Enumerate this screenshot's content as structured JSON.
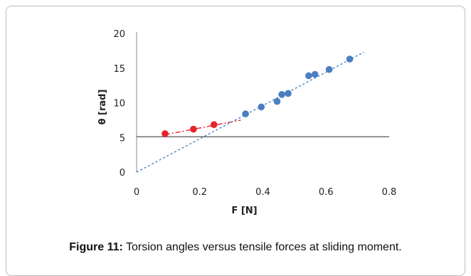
{
  "caption": {
    "label": "Figure 11:",
    "text": " Torsion angles versus tensile forces at sliding moment."
  },
  "chart_data": {
    "type": "scatter",
    "xlabel": "F [N]",
    "ylabel": "θ [rad]",
    "xlim": [
      0,
      0.8
    ],
    "ylim": [
      0,
      20
    ],
    "xticks": [
      "0",
      "0.2",
      "0.4",
      "0.6",
      "0.8"
    ],
    "yticks": [
      "0",
      "5",
      "10",
      "15",
      "20"
    ],
    "grid": false,
    "legend": "none",
    "reference_line": {
      "y": 5.1,
      "color": "#555555"
    },
    "series": [
      {
        "color": "#e8242b",
        "x": [
          0.09,
          0.18,
          0.245
        ],
        "y": [
          5.55,
          6.2,
          6.85
        ],
        "trend_line": {
          "x": [
            0.09,
            0.33
          ],
          "y": [
            5.4,
            7.5
          ],
          "style": "dash-dot",
          "color": "#e8242b"
        }
      },
      {
        "color": "#4a7fc1",
        "x": [
          0.345,
          0.395,
          0.445,
          0.46,
          0.48,
          0.545,
          0.565,
          0.61,
          0.675
        ],
        "y": [
          8.4,
          9.4,
          10.2,
          11.2,
          11.35,
          13.9,
          14.1,
          14.8,
          16.3
        ],
        "trend_line": {
          "x": [
            0,
            0.72
          ],
          "y": [
            0,
            17.3
          ],
          "style": "dotted",
          "color": "#4a7fc1"
        }
      }
    ]
  }
}
